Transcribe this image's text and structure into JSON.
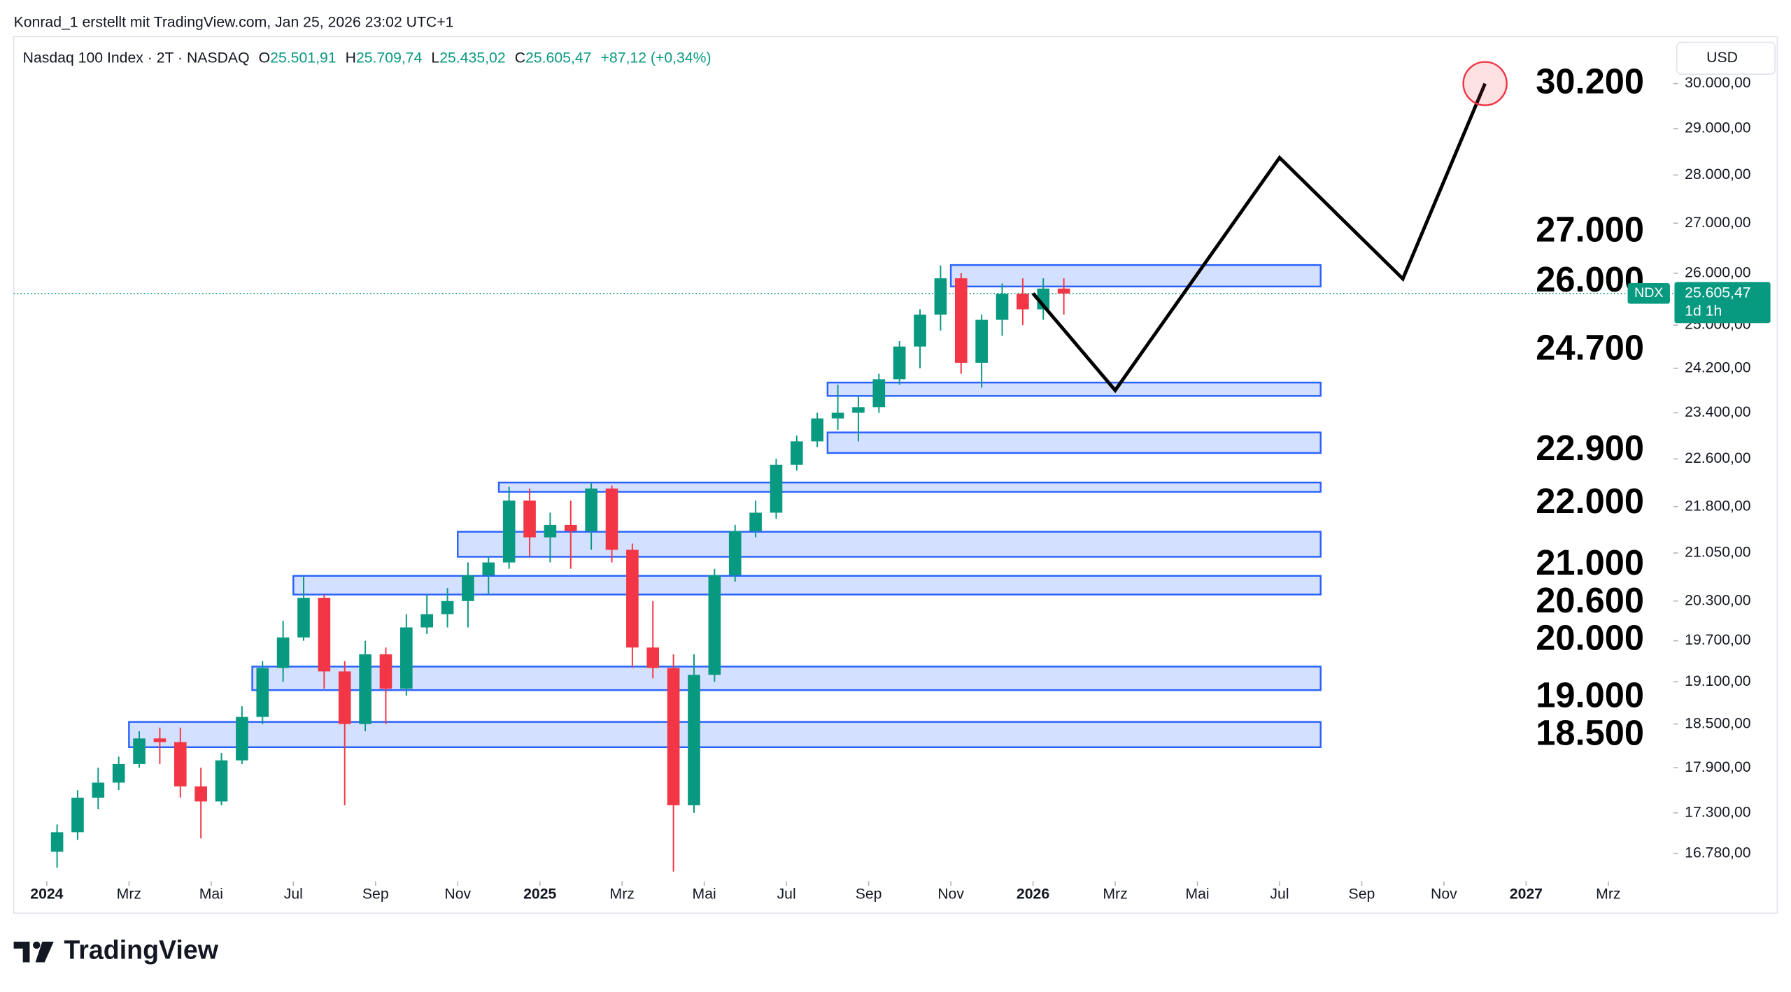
{
  "header": {
    "credit": "Konrad_1 erstellt mit TradingView.com, Jan 25, 2026 23:02 UTC+1"
  },
  "chart_data": {
    "type": "candlestick",
    "title": "Nasdaq 100 Index · 2T · NASDAQ",
    "ohlc_legend": [
      {
        "label": "O",
        "value": "25.501,91"
      },
      {
        "label": "H",
        "value": "25.709,74"
      },
      {
        "label": "L",
        "value": "25.435,02"
      },
      {
        "label": "C",
        "value": "25.605,47"
      }
    ],
    "change": "+87,12 (+0,34%)",
    "currency": "USD",
    "log_scale": true,
    "up_color": "#089981",
    "down_color": "#f23645",
    "xlim": [
      "2023-12",
      "2027-05"
    ],
    "xticks": [
      {
        "value": "2024-01",
        "label": "2024"
      },
      {
        "value": "2024-03",
        "label": "Mrz"
      },
      {
        "value": "2024-05",
        "label": "Mai"
      },
      {
        "value": "2024-07",
        "label": "Jul"
      },
      {
        "value": "2024-09",
        "label": "Sep"
      },
      {
        "value": "2024-11",
        "label": "Nov"
      },
      {
        "value": "2025-01",
        "label": "2025"
      },
      {
        "value": "2025-03",
        "label": "Mrz"
      },
      {
        "value": "2025-05",
        "label": "Mai"
      },
      {
        "value": "2025-07",
        "label": "Jul"
      },
      {
        "value": "2025-09",
        "label": "Sep"
      },
      {
        "value": "2025-11",
        "label": "Nov"
      },
      {
        "value": "2026-01",
        "label": "2026"
      },
      {
        "value": "2026-03",
        "label": "Mrz"
      },
      {
        "value": "2026-05",
        "label": "Mai"
      },
      {
        "value": "2026-07",
        "label": "Jul"
      },
      {
        "value": "2026-09",
        "label": "Sep"
      },
      {
        "value": "2026-11",
        "label": "Nov"
      },
      {
        "value": "2027-01",
        "label": "2027"
      },
      {
        "value": "2027-03",
        "label": "Mrz"
      }
    ],
    "ylim": [
      16530,
      30870
    ],
    "yticks": [
      {
        "value": 30000,
        "label": "30.000,00"
      },
      {
        "value": 29000,
        "label": "29.000,00"
      },
      {
        "value": 28000,
        "label": "28.000,00"
      },
      {
        "value": 27000,
        "label": "27.000,00"
      },
      {
        "value": 26000,
        "label": "26.000,00"
      },
      {
        "value": 25000,
        "label": "25.000,00"
      },
      {
        "value": 24200,
        "label": "24.200,00"
      },
      {
        "value": 23400,
        "label": "23.400,00"
      },
      {
        "value": 22600,
        "label": "22.600,00"
      },
      {
        "value": 21800,
        "label": "21.800,00"
      },
      {
        "value": 21050,
        "label": "21.050,00"
      },
      {
        "value": 20300,
        "label": "20.300,00"
      },
      {
        "value": 19700,
        "label": "19.700,00"
      },
      {
        "value": 19100,
        "label": "19.100,00"
      },
      {
        "value": 18500,
        "label": "18.500,00"
      },
      {
        "value": 17900,
        "label": "17.900,00"
      },
      {
        "value": 17300,
        "label": "17.300,00"
      },
      {
        "value": 16780,
        "label": "16.780,00"
      }
    ],
    "candles": [
      {
        "x": "2024-01",
        "open": 16800,
        "high": 17150,
        "low": 16600,
        "close": 17050
      },
      {
        "x": "2024-01",
        "open": 17050,
        "high": 17600,
        "low": 16950,
        "close": 17500
      },
      {
        "x": "2024-02",
        "open": 17500,
        "high": 17900,
        "low": 17350,
        "close": 17700
      },
      {
        "x": "2024-02",
        "open": 17700,
        "high": 18050,
        "low": 17600,
        "close": 17950
      },
      {
        "x": "2024-03",
        "open": 17950,
        "high": 18400,
        "low": 17900,
        "close": 18300
      },
      {
        "x": "2024-03",
        "open": 18300,
        "high": 18450,
        "low": 17950,
        "close": 18250
      },
      {
        "x": "2024-04",
        "open": 18250,
        "high": 18450,
        "low": 17500,
        "close": 17650
      },
      {
        "x": "2024-04",
        "open": 17650,
        "high": 17900,
        "low": 16970,
        "close": 17450
      },
      {
        "x": "2024-05",
        "open": 17450,
        "high": 18100,
        "low": 17400,
        "close": 18000
      },
      {
        "x": "2024-05",
        "open": 18000,
        "high": 18750,
        "low": 17950,
        "close": 18600
      },
      {
        "x": "2024-06",
        "open": 18600,
        "high": 19400,
        "low": 18500,
        "close": 19300
      },
      {
        "x": "2024-06",
        "open": 19300,
        "high": 20000,
        "low": 19100,
        "close": 19750
      },
      {
        "x": "2024-07",
        "open": 19750,
        "high": 20690,
        "low": 19700,
        "close": 20350
      },
      {
        "x": "2024-07",
        "open": 20350,
        "high": 20400,
        "low": 19000,
        "close": 19250
      },
      {
        "x": "2024-08",
        "open": 19250,
        "high": 19400,
        "low": 17400,
        "close": 18500
      },
      {
        "x": "2024-08",
        "open": 18500,
        "high": 19700,
        "low": 18400,
        "close": 19500
      },
      {
        "x": "2024-09",
        "open": 19500,
        "high": 19600,
        "low": 18500,
        "close": 19000
      },
      {
        "x": "2024-09",
        "open": 19000,
        "high": 20100,
        "low": 18900,
        "close": 19900
      },
      {
        "x": "2024-10",
        "open": 19900,
        "high": 20400,
        "low": 19800,
        "close": 20100
      },
      {
        "x": "2024-10",
        "open": 20100,
        "high": 20500,
        "low": 19900,
        "close": 20300
      },
      {
        "x": "2024-11",
        "open": 20300,
        "high": 20900,
        "low": 19900,
        "close": 20700
      },
      {
        "x": "2024-11",
        "open": 20700,
        "high": 21000,
        "low": 20400,
        "close": 20900
      },
      {
        "x": "2024-12",
        "open": 20900,
        "high": 22130,
        "low": 20800,
        "close": 21900
      },
      {
        "x": "2024-12",
        "open": 21900,
        "high": 22100,
        "low": 21000,
        "close": 21300
      },
      {
        "x": "2025-01",
        "open": 21300,
        "high": 21700,
        "low": 20900,
        "close": 21500
      },
      {
        "x": "2025-01",
        "open": 21500,
        "high": 21900,
        "low": 20800,
        "close": 21400
      },
      {
        "x": "2025-02",
        "open": 21400,
        "high": 22200,
        "low": 21100,
        "close": 22100
      },
      {
        "x": "2025-02",
        "open": 22100,
        "high": 22150,
        "low": 20900,
        "close": 21100
      },
      {
        "x": "2025-03",
        "open": 21100,
        "high": 21200,
        "low": 19300,
        "close": 19600
      },
      {
        "x": "2025-03",
        "open": 19600,
        "high": 20300,
        "low": 19150,
        "close": 19300
      },
      {
        "x": "2025-04",
        "open": 19300,
        "high": 19500,
        "low": 16550,
        "close": 17400
      },
      {
        "x": "2025-04",
        "open": 17400,
        "high": 19500,
        "low": 17300,
        "close": 19200
      },
      {
        "x": "2025-05",
        "open": 19200,
        "high": 20800,
        "low": 19100,
        "close": 20700
      },
      {
        "x": "2025-05",
        "open": 20700,
        "high": 21500,
        "low": 20600,
        "close": 21400
      },
      {
        "x": "2025-06",
        "open": 21400,
        "high": 21900,
        "low": 21300,
        "close": 21700
      },
      {
        "x": "2025-06",
        "open": 21700,
        "high": 22600,
        "low": 21600,
        "close": 22500
      },
      {
        "x": "2025-07",
        "open": 22500,
        "high": 23000,
        "low": 22400,
        "close": 22900
      },
      {
        "x": "2025-07",
        "open": 22900,
        "high": 23400,
        "low": 22800,
        "close": 23300
      },
      {
        "x": "2025-08",
        "open": 23300,
        "high": 23900,
        "low": 23100,
        "close": 23400
      },
      {
        "x": "2025-08",
        "open": 23400,
        "high": 23700,
        "low": 22900,
        "close": 23500
      },
      {
        "x": "2025-09",
        "open": 23500,
        "high": 24100,
        "low": 23400,
        "close": 24000
      },
      {
        "x": "2025-09",
        "open": 24000,
        "high": 24700,
        "low": 23900,
        "close": 24600
      },
      {
        "x": "2025-10",
        "open": 24600,
        "high": 25300,
        "low": 24200,
        "close": 25200
      },
      {
        "x": "2025-10",
        "open": 25200,
        "high": 26150,
        "low": 24900,
        "close": 25900
      },
      {
        "x": "2025-11",
        "open": 25900,
        "high": 26000,
        "low": 24100,
        "close": 24300
      },
      {
        "x": "2025-11",
        "open": 24300,
        "high": 25200,
        "low": 23850,
        "close": 25100
      },
      {
        "x": "2025-12",
        "open": 25100,
        "high": 25800,
        "low": 24800,
        "close": 25600
      },
      {
        "x": "2025-12",
        "open": 25600,
        "high": 25900,
        "low": 25000,
        "close": 25300
      },
      {
        "x": "2026-01",
        "open": 25300,
        "high": 25900,
        "low": 25100,
        "close": 25700
      },
      {
        "x": "2026-01",
        "open": 25700,
        "high": 25900,
        "low": 25200,
        "close": 25605.47
      }
    ],
    "last_price": {
      "symbol": "NDX",
      "value": 25605.47,
      "label": "25.605,47",
      "countdown": "1d 1h"
    },
    "zones": {
      "color": "#2962ff",
      "items": [
        {
          "x": [
            "2025-11",
            "2026-08"
          ],
          "range": [
            25740,
            26160
          ]
        },
        {
          "x": [
            "2025-08",
            "2026-08"
          ],
          "range": [
            23700,
            23940
          ]
        },
        {
          "x": [
            "2025-08",
            "2026-08"
          ],
          "range": [
            22700,
            23055
          ]
        },
        {
          "x": [
            "2024-12",
            "2026-08"
          ],
          "range": [
            22045,
            22200
          ]
        },
        {
          "x": [
            "2024-11",
            "2026-08"
          ],
          "range": [
            20990,
            21390
          ]
        },
        {
          "x": [
            "2024-07",
            "2026-08"
          ],
          "range": [
            20400,
            20690
          ]
        },
        {
          "x": [
            "2024-06",
            "2026-08"
          ],
          "range": [
            18980,
            19320
          ]
        },
        {
          "x": [
            "2024-03",
            "2026-08"
          ],
          "range": [
            18180,
            18530
          ]
        }
      ]
    },
    "forecast": {
      "color": "#000000",
      "x": [
        "2026-01",
        "2026-03",
        "2026-07",
        "2026-10",
        "2026-12"
      ],
      "values": [
        25605.47,
        23800,
        28370,
        25890,
        30000
      ]
    },
    "target_color": "#f23645",
    "levels": [
      {
        "value": 30200,
        "label": "30.200"
      },
      {
        "value": 27000,
        "label": "27.000"
      },
      {
        "value": 26000,
        "label": "26.000"
      },
      {
        "value": 24700,
        "label": "24.700"
      },
      {
        "value": 22900,
        "label": "22.900"
      },
      {
        "value": 22000,
        "label": "22.000"
      },
      {
        "value": 21000,
        "label": "21.000"
      },
      {
        "value": 20600,
        "label": "20.600"
      },
      {
        "value": 20000,
        "label": "20.000"
      },
      {
        "value": 19000,
        "label": "19.000"
      },
      {
        "value": 18500,
        "label": "18.500"
      }
    ]
  },
  "footer": {
    "brand": "TradingView"
  }
}
